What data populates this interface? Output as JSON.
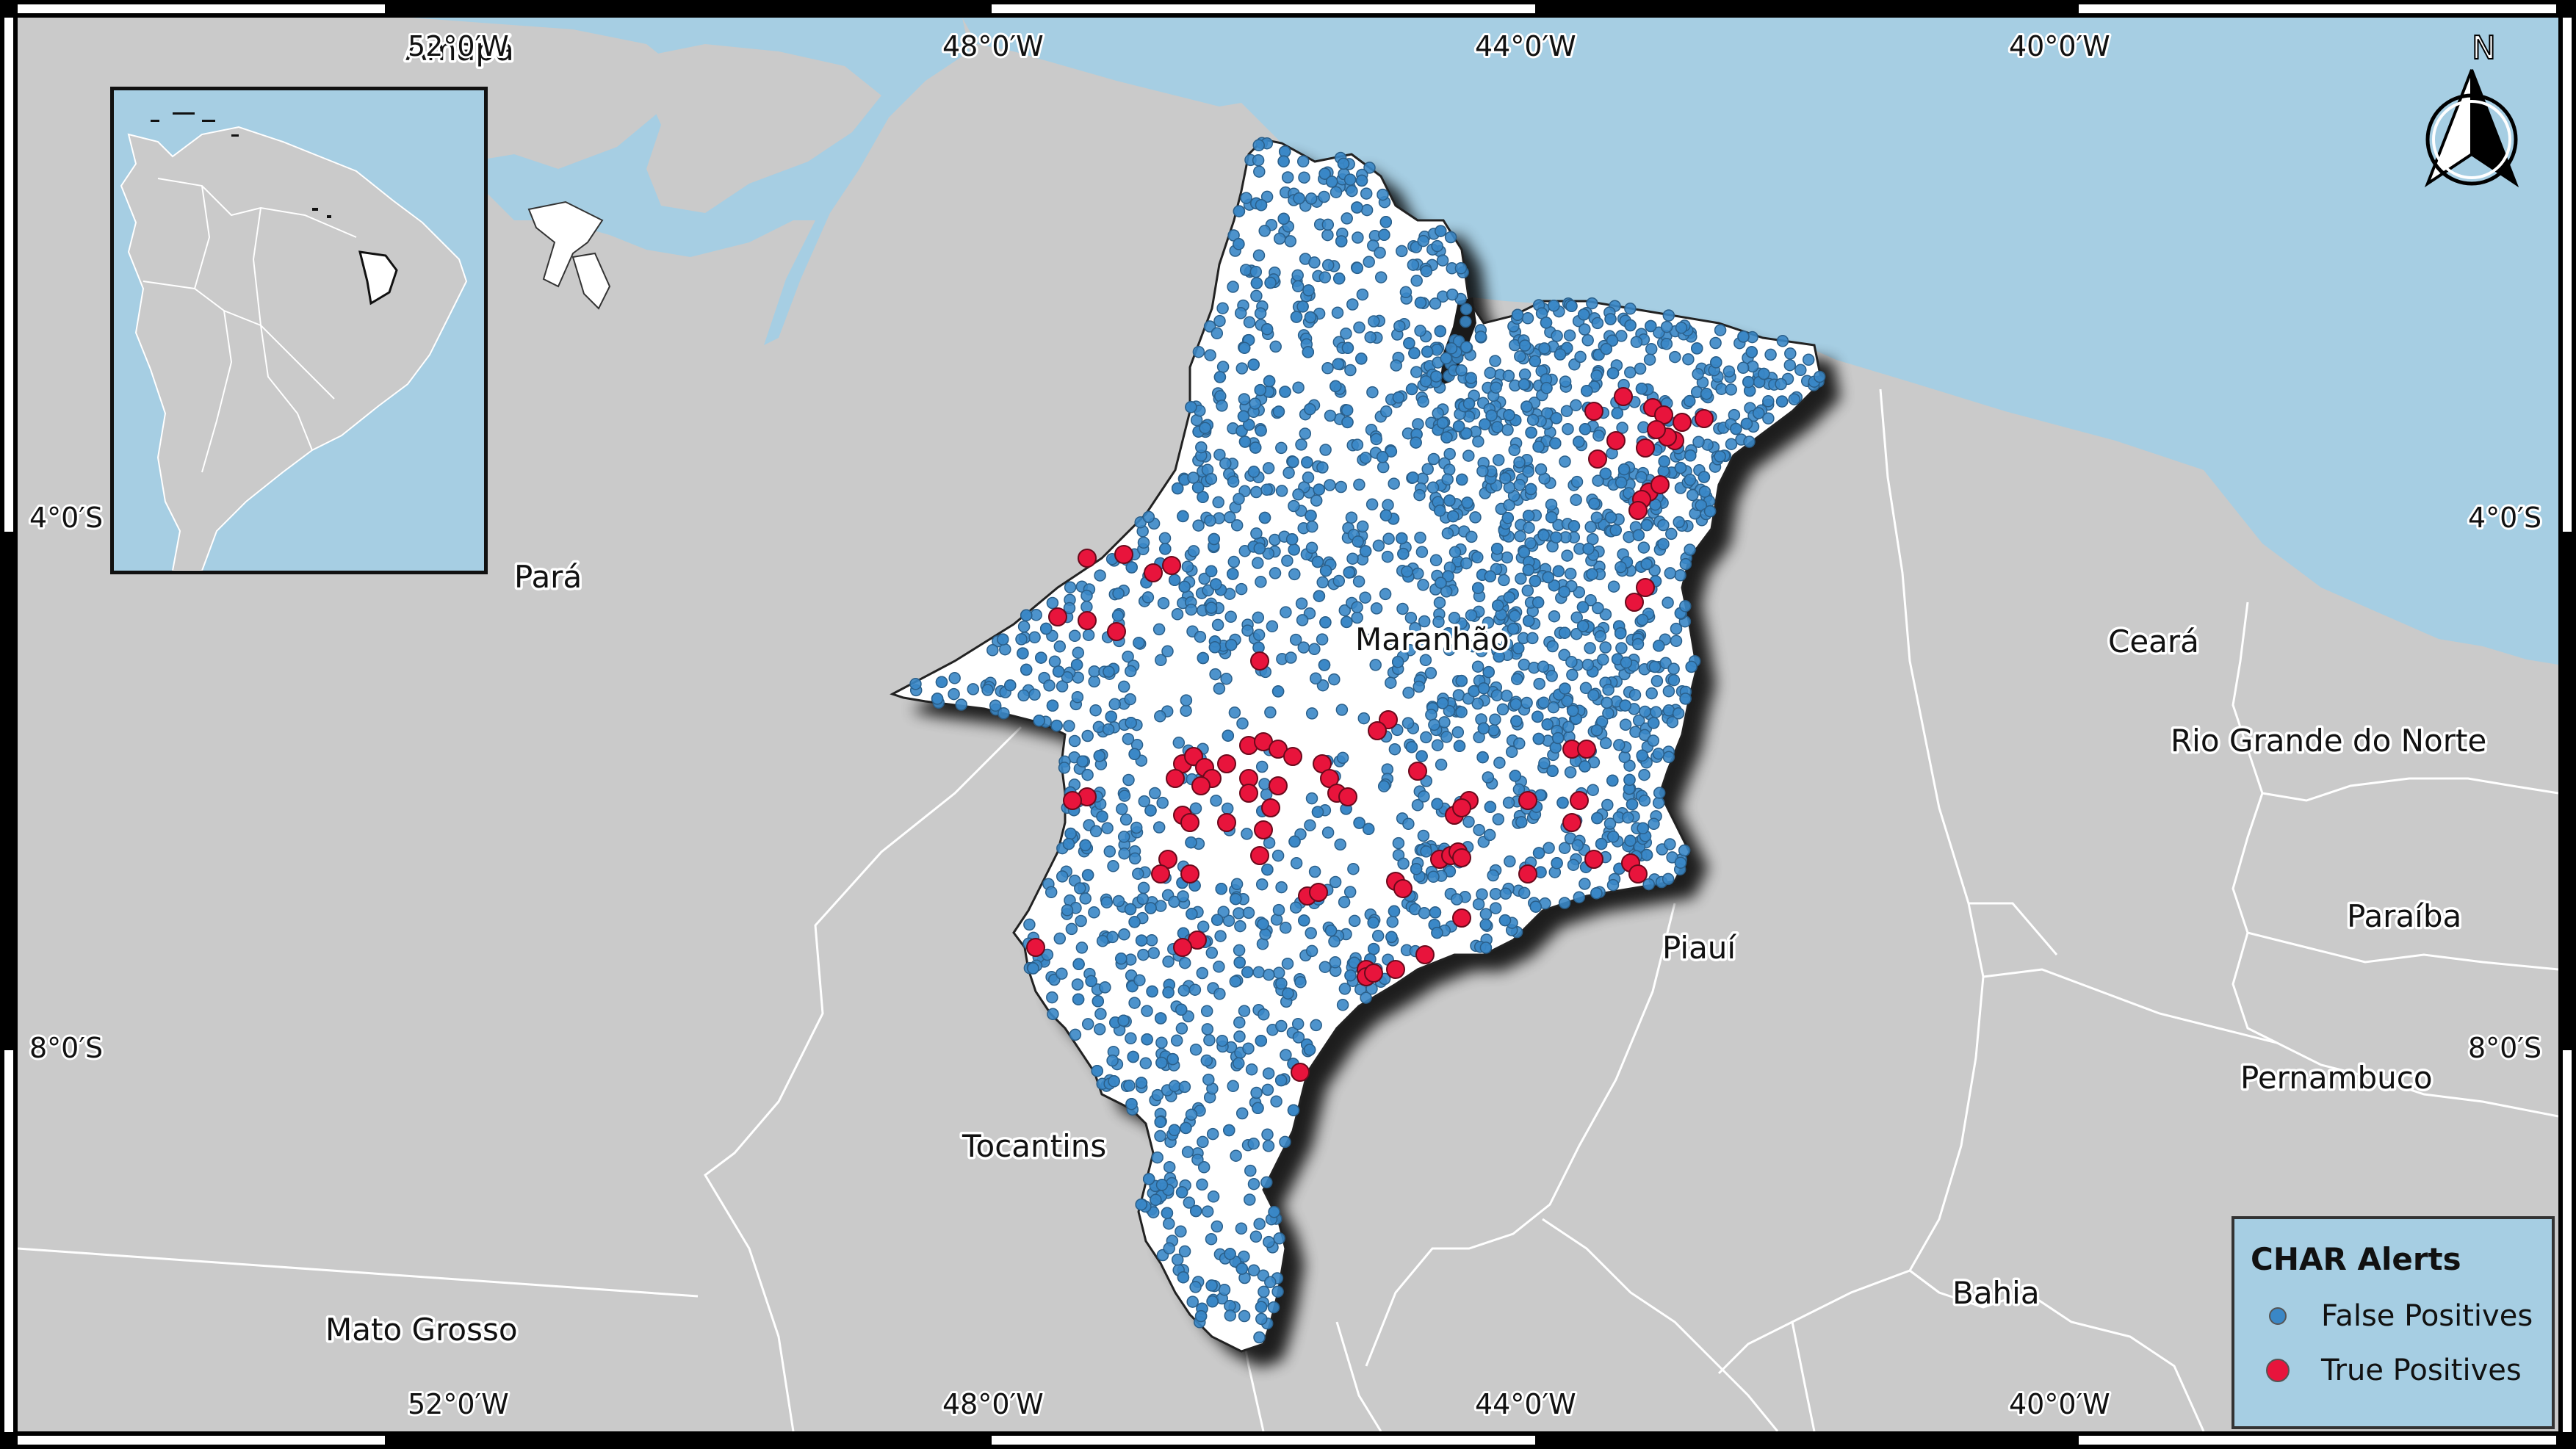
{
  "map": {
    "colors": {
      "ocean": "#a6cee3",
      "land": "#cacaca",
      "maranhao": "#ffffff",
      "border": "#ffffff",
      "false_positive": "#3a87c6",
      "true_positive": "#e8143c",
      "frame": "#000000"
    },
    "graticule": {
      "longitudes": [
        "52°0′W",
        "48°0′W",
        "44°0′W",
        "40°0′W"
      ],
      "latitudes": [
        "4°0′S",
        "8°0′S"
      ]
    },
    "overlapping_label_top_left": "Amapá",
    "labels": {
      "para": "Pará",
      "maranhao": "Maranhão",
      "ceara": "Ceará",
      "rio_grande_do_norte": "Rio Grande do Norte",
      "paraiba": "Paraíba",
      "pernambuco": "Pernambuco",
      "piaui": "Piauí",
      "tocantins": "Tocantins",
      "bahia": "Bahia",
      "mato_grosso": "Mato Grosso"
    },
    "north_arrow": {
      "label": "N",
      "icon": "north-arrow-icon"
    },
    "inset": {
      "description_icon": "south-america-locator-icon"
    }
  },
  "legend": {
    "title": "CHAR Alerts",
    "items": [
      {
        "label": "False Positives",
        "color": "#3a87c6",
        "symbol": "small-circle"
      },
      {
        "label": "True Positives",
        "color": "#e8143c",
        "symbol": "large-circle"
      }
    ]
  }
}
